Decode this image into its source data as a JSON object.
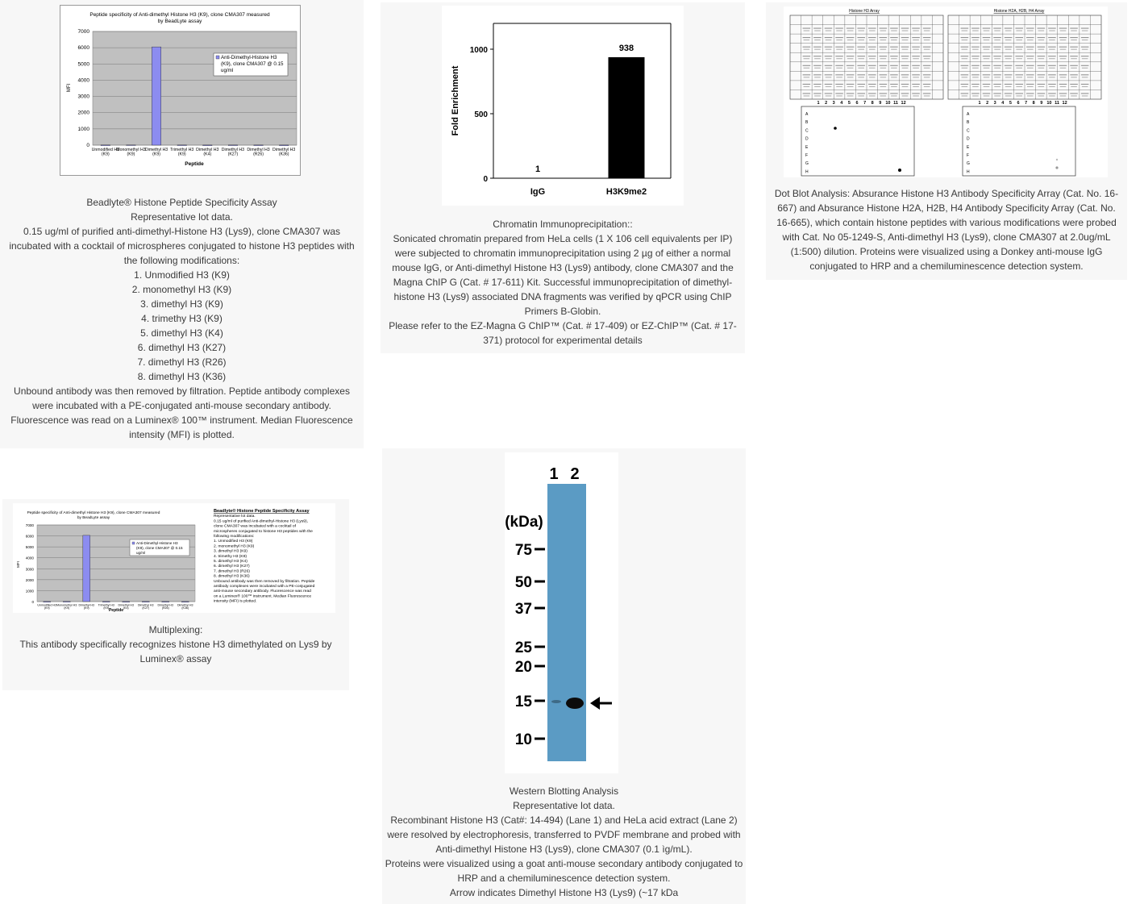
{
  "panel1": {
    "chart_title_1": "Peptide specificity of Anti-dimethyl Histone H3 (K9), clone CMA307 measured",
    "chart_title_2": "by BeadLyte assay",
    "legend_1": "Anti-Dimethyl-Histone H3",
    "legend_2": "(K9), clone CMA307 @ 0.15",
    "legend_3": "ug/ml",
    "y_label": "MFI",
    "x_label": "Peptide",
    "caption": [
      "Beadlyte® Histone Peptide Specificity Assay",
      "Representative lot data.",
      "0.15 ug/ml of purified anti-dimethyl-Histone H3 (Lys9), clone CMA307 was incubated with a cocktail of microspheres conjugated to histone H3 peptides with the following modifications:",
      "1. Unmodified H3 (K9)",
      "2. monomethyl H3 (K9)",
      "3. dimethyl H3 (K9)",
      "4. trimethy H3 (K9)",
      "5. dimethyl H3 (K4)",
      "6. dimethyl H3 (K27)",
      "7. dimethyl H3 (R26)",
      "8. dimethyl H3 (K36)",
      "Unbound antibody was then removed by filtration. Peptide antibody complexes were incubated with a PE-conjugated anti-mouse secondary antibody. Fluorescence was read on a Luminex® 100™ instrument. Median Fluorescence intensity (MFI) is plotted."
    ]
  },
  "chart_data": [
    {
      "type": "bar",
      "categories": [
        "Unmodified H3 (K9)",
        "Monomethyl H3 (K9)",
        "Dimethyl H3 (K9)",
        "Trimethyl H3 (K9)",
        "Dimethyl H3 (K4)",
        "Dimethyl H3 (K27)",
        "Dimethyl H3 (R26)",
        "Dimethyl H3 (K36)"
      ],
      "values": [
        10,
        15,
        6050,
        12,
        8,
        12,
        10,
        8
      ],
      "ylim": [
        0,
        7000
      ],
      "yticks": [
        0,
        1000,
        2000,
        3000,
        4000,
        5000,
        6000,
        7000
      ],
      "ylabel": "MFI",
      "xlabel": "Peptide",
      "series_color": "#8c8cf0"
    },
    {
      "type": "bar",
      "categories": [
        "IgG",
        "H3K9me2"
      ],
      "values": [
        1,
        938
      ],
      "data_labels": [
        "1",
        "938"
      ],
      "ylim": [
        0,
        1200
      ],
      "yticks": [
        0,
        500,
        1000
      ],
      "ylabel": "Fold Enrichment",
      "series_color": "#000000"
    }
  ],
  "panel2": {
    "caption": [
      "Chromatin Immunoprecipitation::",
      "Sonicated chromatin prepared from HeLa cells (1 X 106 cell equivalents per IP) were subjected to chromatin immunoprecipitation using 2 µg of either a normal mouse IgG, or Anti-dimethyl Histone H3 (Lys9) antibody, clone CMA307 and the Magna ChIP G (Cat. # 17-611) Kit. Successful immunoprecipitation of dimethyl-histone H3 (Lys9) associated DNA fragments was verified by qPCR using ChIP Primers B-Globin.",
      "Please refer to the EZ-Magna G ChIP™ (Cat. # 17-409) or EZ-ChIP™ (Cat. # 17-371) protocol for experimental details"
    ]
  },
  "panel3": {
    "h3_title": "Histone H3 Array",
    "h2_title": "Histone H2A, H2B, H4 Array",
    "rows": [
      "A",
      "B",
      "C",
      "D",
      "E",
      "F",
      "G",
      "H"
    ],
    "cols": [
      "1",
      "2",
      "3",
      "4",
      "5",
      "6",
      "7",
      "8",
      "9",
      "10",
      "11",
      "12"
    ],
    "caption": [
      "Dot Blot Analysis: Absurance Histone H3 Antibody Specificity Array (Cat. No. 16-667) and Absurance Histone H2A, H2B, H4 Antibody Specificity Array (Cat. No. 16-665), which contain histone peptides with various modifications were probed with Cat. No 05-1249-S, Anti-dimethyl H3 (Lys9), clone CMA307 at 2.0ug/mL (1:500) dilution. Proteins were visualized using a Donkey anti-mouse IgG conjugated to HRP and a chemiluminescence detection system."
    ]
  },
  "panel4": {
    "side_text": [
      "Beadlyte® Histone Peptide Specificity Assay",
      "Representative lot data.",
      "0.15 ug/ml of purified Anti-dimethyl-Histone H3 (Lys9),",
      "clone CMA307 was incubated with a cocktail of",
      "microspheres conjugated to histone H3 peptides with the",
      "following modifications:",
      "1. Unmodified H3 (K9)",
      "2. monomethyl H3 (K9)",
      "3. dimethyl H3 (K9)",
      "4. trimethy H3 (K9)",
      "5. dimethyl H3 (K4)",
      "6. dimethyl H3 (K27)",
      "7. dimethyl H3 (R26)",
      "8. dimethyl H3 (K36)",
      "Unbound antibody was then removed by filtration. Peptide",
      "antibody complexes were incubated with a PE-conjugated",
      "anti-mouse secondary antibody. Fluorescence was read",
      "on a Luminex® 100™ instrument. Median Fluorescence",
      "intensity (MFI) is plotted."
    ],
    "chart_title": "Peptide specificity of Anti-dimethyl Histone H3 (K9), clone CMA307 measured",
    "chart_title_2": "by BeadLyte assay",
    "caption": [
      "Multiplexing:",
      "This antibody specifically recognizes histone H3 dimethylated on Lys9 by Luminex® assay"
    ]
  },
  "panel5": {
    "lane1": "1",
    "lane2": "2",
    "kda": "(kDa)",
    "markers": [
      "75",
      "50",
      "37",
      "25",
      "20",
      "15",
      "10"
    ],
    "caption": [
      "Western Blotting Analysis",
      "Representative lot data.",
      "Recombinant Histone H3 (Cat#: 14-494) (Lane 1) and HeLa acid extract (Lane 2) were resolved by electrophoresis, transferred to PVDF membrane and probed with Anti-dimethyl Histone H3 (Lys9), clone CMA307 (0.1 ìg/mL).",
      "Proteins were visualized using a goat anti-mouse secondary antibody conjugated to HRP and a chemiluminescence detection system.",
      "Arrow indicates Dimethyl Histone H3 (Lys9) (~17 kDa"
    ]
  }
}
